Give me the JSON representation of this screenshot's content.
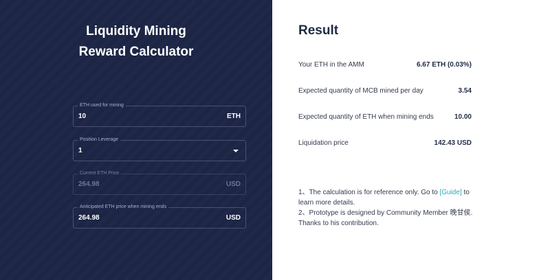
{
  "left": {
    "title_line1": "Liquidity Mining",
    "title_line2": "Reward Calculator",
    "fields": [
      {
        "label": "ETH used for mining",
        "value": "10",
        "unit": "ETH"
      },
      {
        "label": "Position Leverage",
        "value": "1"
      },
      {
        "label": "Current ETH Price",
        "value": "264.98",
        "unit": "USD"
      },
      {
        "label": "Anticipated ETH price when mining ends",
        "value": "264.98",
        "unit": "USD"
      }
    ]
  },
  "result": {
    "title": "Result",
    "rows": [
      {
        "label": "Your ETH in the AMM",
        "value": "6.67 ETH (0.03%)"
      },
      {
        "label": "Expected quantity of MCB mined per day",
        "value": "3.54"
      },
      {
        "label": "Expected quantity of ETH when mining ends",
        "value": "10.00"
      },
      {
        "label": "Liquidation price",
        "value": "142.43 USD"
      }
    ],
    "note1_prefix": "1、The calculation is for reference only. Go to ",
    "note1_link": "[Guide]",
    "note1_suffix": " to learn more details.",
    "note2": "2、Prototype is designed by Community Member 晚甘侯. Thanks to his contribution."
  },
  "colors": {
    "left_bg": "#1e2647",
    "link": "#28a8c0"
  }
}
